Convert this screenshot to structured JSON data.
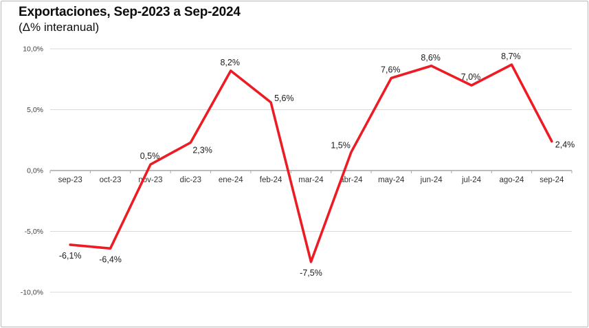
{
  "header": {
    "title": "Exportaciones, Sep-2023 a Sep-2024",
    "subtitle": "(Δ% interanual)"
  },
  "chart_data": {
    "type": "line",
    "title": "Exportaciones, Sep-2023 a Sep-2024",
    "subtitle": "(Δ% interanual)",
    "categories": [
      "sep-23",
      "oct-23",
      "nov-23",
      "dic-23",
      "ene-24",
      "feb-24",
      "mar-24",
      "abr-24",
      "may-24",
      "jun-24",
      "jul-24",
      "ago-24",
      "sep-24"
    ],
    "values": [
      -6.1,
      -6.4,
      0.5,
      2.3,
      8.2,
      5.6,
      -7.5,
      1.5,
      7.6,
      8.6,
      7.0,
      8.7,
      2.4
    ],
    "point_labels": [
      "-6,1%",
      "-6,4%",
      "0,5%",
      "2,3%",
      "8,2%",
      "5,6%",
      "-7,5%",
      "1,5%",
      "7,6%",
      "8,6%",
      "7,0%",
      "8,7%",
      "2,4%"
    ],
    "label_placements": [
      "below",
      "below",
      "above",
      "below-right",
      "above",
      "above-right",
      "below",
      "above-left",
      "above",
      "above",
      "above",
      "above",
      "right"
    ],
    "yticks": [
      {
        "value": 10,
        "label": "10,0%"
      },
      {
        "value": 5,
        "label": "5,0%"
      },
      {
        "value": 0,
        "label": "0,0%"
      },
      {
        "value": -5,
        "label": "-5,0%"
      },
      {
        "value": -10,
        "label": "-10,0%"
      }
    ],
    "ylim": [
      -10,
      10
    ],
    "xlabel": "",
    "ylabel": "",
    "grid": true,
    "legend": "none",
    "line_color": "#ed1c24",
    "gridline_color": "#d9d9d9",
    "axis_color": "#a6a6a6",
    "label_color": "#1a1a1a",
    "tick_label_color": "#404040",
    "category_label_color": "#333333"
  }
}
